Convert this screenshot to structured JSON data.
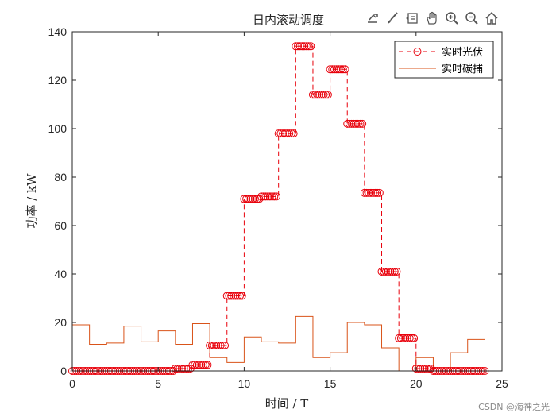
{
  "toolbar": {
    "icons": [
      "export-icon",
      "brush-icon",
      "data-tip-icon",
      "pan-hand-icon",
      "zoom-in-icon",
      "zoom-out-icon",
      "home-icon"
    ]
  },
  "watermark": "CSDN @海神之光",
  "chart_data": {
    "type": "line",
    "title": "日内滚动调度",
    "xlabel": "时间 / T",
    "ylabel": "功率 / kW",
    "xlim": [
      0,
      25
    ],
    "ylim": [
      0,
      140
    ],
    "xticks": [
      0,
      5,
      10,
      15,
      20,
      25
    ],
    "yticks": [
      0,
      20,
      40,
      60,
      80,
      100,
      120,
      140
    ],
    "grid": false,
    "legend_position": "top-right",
    "colors": {
      "pv": "#e8000b",
      "cc": "#d95319",
      "axis": "#262626"
    },
    "series": [
      {
        "name": "实时光伏",
        "style": "dashed-circle",
        "step_width": 1,
        "values": [
          0,
          0,
          0,
          0,
          0,
          0,
          1,
          2.5,
          10.5,
          31,
          71,
          72,
          98,
          134,
          114,
          124.5,
          102,
          73.5,
          41,
          13.5,
          1,
          0,
          0,
          0
        ]
      },
      {
        "name": "实时碳捕",
        "style": "solid",
        "step_width": 0.5,
        "values": [
          19,
          19,
          11,
          11,
          11.5,
          11.5,
          18.5,
          18.5,
          12,
          12,
          16.5,
          16.5,
          11,
          11,
          19.5,
          19.5,
          5.5,
          5.5,
          3.5,
          3.5,
          14,
          14,
          12,
          12,
          11.5,
          11.5,
          22.5,
          22.5,
          5.5,
          5.5,
          7.5,
          7.5,
          20,
          20,
          19,
          19,
          9.5,
          9.5,
          0,
          0,
          5.5,
          5.5,
          0,
          0,
          7.5,
          7.5,
          13,
          13
        ]
      }
    ]
  }
}
